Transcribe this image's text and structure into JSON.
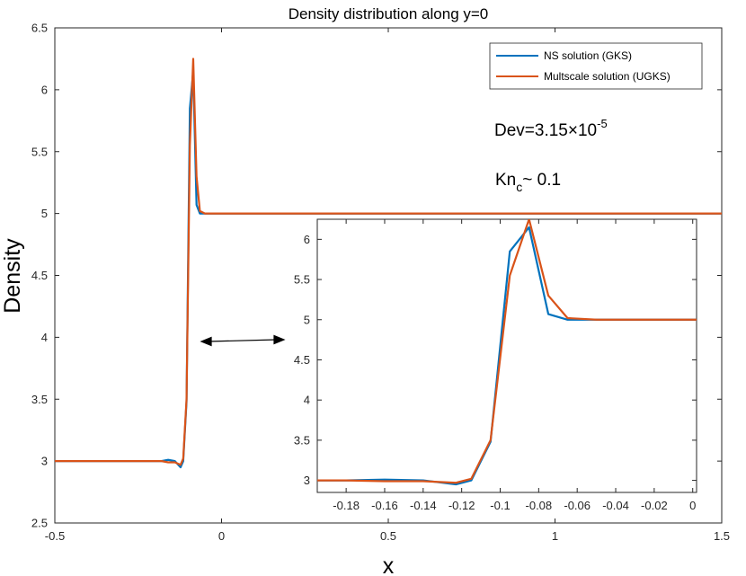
{
  "chart_data": {
    "type": "line",
    "title": "Density distribution along y=0",
    "xlabel": "x",
    "ylabel": "Density",
    "xlim": [
      -0.5,
      1.5
    ],
    "ylim": [
      2.5,
      6.5
    ],
    "xticks": [
      "-0.5",
      "0",
      "0.5",
      "1",
      "1.5"
    ],
    "yticks": [
      "2.5",
      "3",
      "3.5",
      "4",
      "4.5",
      "5",
      "5.5",
      "6",
      "6.5"
    ],
    "grid": false,
    "legend_position": "top-right",
    "series": [
      {
        "name": "NS solution (GKS)",
        "color": "#0072BD",
        "x": [
          -0.5,
          -0.18,
          -0.16,
          -0.14,
          -0.123,
          -0.115,
          -0.105,
          -0.095,
          -0.085,
          -0.075,
          -0.065,
          -0.05,
          1.5
        ],
        "y": [
          3.0,
          3.0,
          3.01,
          3.0,
          2.95,
          3.0,
          3.48,
          5.85,
          6.15,
          5.07,
          5.0,
          5.0,
          5.0
        ]
      },
      {
        "name": "Multscale solution (UGKS)",
        "color": "#D95319",
        "x": [
          -0.5,
          -0.18,
          -0.16,
          -0.14,
          -0.123,
          -0.115,
          -0.105,
          -0.095,
          -0.085,
          -0.075,
          -0.065,
          -0.05,
          1.5
        ],
        "y": [
          3.0,
          3.0,
          2.99,
          2.99,
          2.97,
          3.02,
          3.5,
          5.55,
          6.25,
          5.3,
          5.02,
          5.0,
          5.0
        ]
      }
    ],
    "annotations": {
      "dev_prefix": "Dev=3.15",
      "dev_times": "×",
      "dev_base": "10",
      "dev_exp": "-5",
      "kn_main": "Kn",
      "kn_sub": "c",
      "kn_rest": "~ 0.1"
    },
    "inset": {
      "xlim": [
        -0.195,
        0.002
      ],
      "ylim": [
        2.85,
        6.25
      ],
      "xticks": [
        "-0.18",
        "-0.16",
        "-0.14",
        "-0.12",
        "-0.1",
        "-0.08",
        "-0.06",
        "-0.04",
        "-0.02",
        "0"
      ],
      "yticks": [
        "3",
        "3.5",
        "4",
        "4.5",
        "5",
        "5.5",
        "6"
      ]
    }
  }
}
